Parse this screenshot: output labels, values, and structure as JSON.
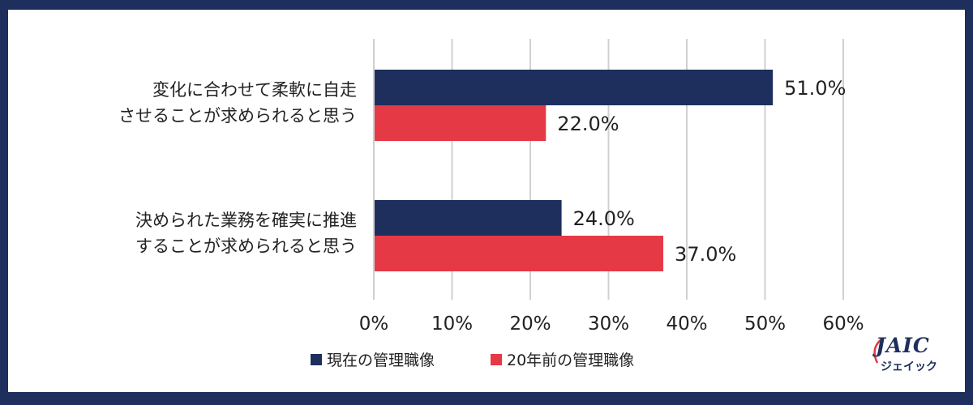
{
  "chart_data": {
    "type": "bar",
    "orientation": "horizontal",
    "categories": [
      [
        "変化に合わせて柔軟に自走",
        "させることが求められると思う"
      ],
      [
        "決められた業務を確実に推進",
        "することが求められると思う"
      ]
    ],
    "series": [
      {
        "name": "現在の管理職像",
        "values": [
          51.0,
          24.0
        ],
        "color": "#1e2f5e"
      },
      {
        "name": "20年前の管理職像",
        "values": [
          22.0,
          37.0
        ],
        "color": "#e63946"
      }
    ],
    "value_labels": [
      [
        "51.0%",
        "24.0%"
      ],
      [
        "22.0%",
        "37.0%"
      ]
    ],
    "xlim": [
      0,
      60
    ],
    "xticks": [
      "0%",
      "10%",
      "20%",
      "30%",
      "40%",
      "50%",
      "60%"
    ],
    "grid": "vertical",
    "legend_position": "bottom"
  },
  "logo": {
    "main": "JAIC",
    "sub": "ジェイック"
  }
}
